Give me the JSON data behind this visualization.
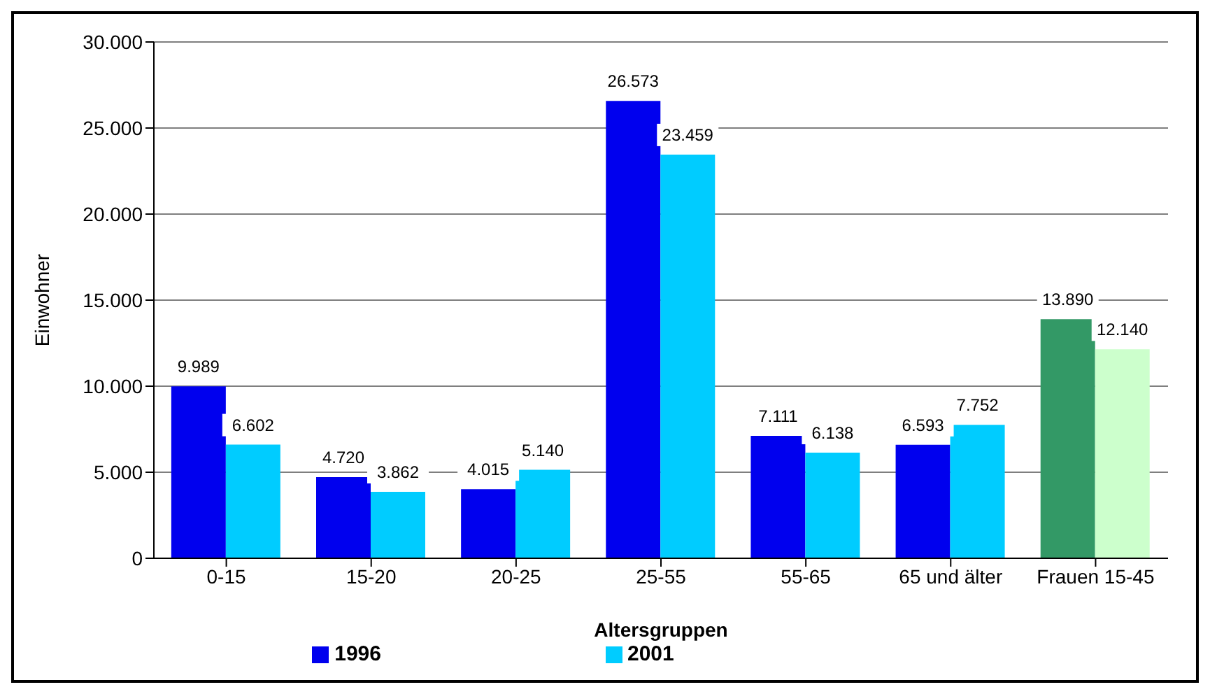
{
  "chart_data": {
    "type": "bar",
    "xlabel": "Altersgruppen",
    "ylabel": "Einwohner",
    "categories": [
      "0-15",
      "15-20",
      "20-25",
      "25-55",
      "55-65",
      "65 und älter",
      "Frauen 15-45"
    ],
    "series": [
      {
        "name": "1996",
        "color": "#0000ee",
        "colors": [
          "#0000ee",
          "#0000ee",
          "#0000ee",
          "#0000ee",
          "#0000ee",
          "#0000ee",
          "#339966"
        ],
        "values": [
          9989,
          4720,
          4015,
          26573,
          7111,
          6593,
          13890
        ],
        "value_labels": [
          "9.989",
          "4.720",
          "4.015",
          "26.573",
          "7.111",
          "6.593",
          "13.890"
        ]
      },
      {
        "name": "2001",
        "color": "#00ccff",
        "colors": [
          "#00ccff",
          "#00ccff",
          "#00ccff",
          "#00ccff",
          "#00ccff",
          "#00ccff",
          "#ccffcc"
        ],
        "values": [
          6602,
          3862,
          5140,
          23459,
          6138,
          7752,
          12140
        ],
        "value_labels": [
          "6.602",
          "3.862",
          "5.140",
          "23.459",
          "6.138",
          "7.752",
          "12.140"
        ]
      }
    ],
    "ylim": [
      0,
      30000
    ],
    "yticks": [
      {
        "value": 0,
        "label": "0"
      },
      {
        "value": 5000,
        "label": "5.000"
      },
      {
        "value": 10000,
        "label": "10.000"
      },
      {
        "value": 15000,
        "label": "15.000"
      },
      {
        "value": 20000,
        "label": "20.000"
      },
      {
        "value": 25000,
        "label": "25.000"
      },
      {
        "value": 30000,
        "label": "30.000"
      }
    ],
    "grid": "y",
    "legend": "bottom"
  }
}
